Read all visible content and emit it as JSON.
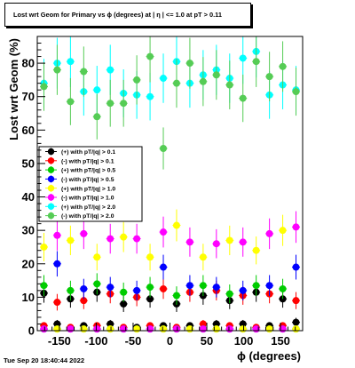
{
  "title": "Lost wrt Geom for Primary vs ϕ (degrees) at | η | <= 1.0 at pT > 0.11",
  "footer_timestamp": "Tue Sep 20 18:40:44 2022",
  "chart_data": {
    "type": "scatter",
    "xlabel": "ϕ (degrees)",
    "ylabel": "Lost wrt Geom (%)",
    "xlim": [
      -180,
      180
    ],
    "ylim": [
      0,
      88
    ],
    "xticks": [
      -150,
      -100,
      -50,
      0,
      50,
      100,
      150
    ],
    "yticks": [
      0,
      10,
      20,
      30,
      40,
      50,
      60,
      70,
      80
    ],
    "grid": false,
    "legend_position": "left-middle",
    "x": [
      -171,
      -153,
      -135,
      -117,
      -99,
      -81,
      -63,
      -45,
      -27,
      -9,
      9,
      27,
      45,
      63,
      81,
      99,
      117,
      135,
      153,
      171
    ],
    "series": [
      {
        "name": "(+) with pT/|q| > 0.1",
        "color": "#000000",
        "marker": "circle",
        "values": [
          11.2,
          2.0,
          9.5,
          1.5,
          11.5,
          2.0,
          8.0,
          1.0,
          9.5,
          1.5,
          8.0,
          1.5,
          10.5,
          2.0,
          9.0,
          2.0,
          11.5,
          1.5,
          9.5,
          2.5
        ]
      },
      {
        "name": "(-) with pT/|q| > 0.1",
        "color": "#ff0000",
        "marker": "circle",
        "values": [
          1.5,
          8.5,
          1.0,
          9.0,
          1.5,
          11.0,
          1.0,
          10.0,
          1.5,
          12.5,
          1.0,
          11.5,
          2.0,
          12.0,
          1.5,
          10.5,
          1.0,
          11.0,
          1.5,
          9.0
        ]
      },
      {
        "name": "(+) with pT/|q| > 0.5",
        "color": "#00cc00",
        "marker": "circle",
        "values": [
          13.5,
          0.5,
          12.0,
          0.5,
          14.0,
          0.5,
          11.5,
          0.5,
          13.0,
          0.5,
          10.5,
          0.5,
          13.5,
          0.5,
          11.0,
          0.5,
          13.5,
          0.5,
          12.5,
          0.5
        ]
      },
      {
        "name": "(-) with pT/|q| > 0.5",
        "color": "#0000ff",
        "marker": "circle",
        "values": [
          0.5,
          20.0,
          0.5,
          12.5,
          0.5,
          13.0,
          0.5,
          12.0,
          0.5,
          19.0,
          0.5,
          13.5,
          0.5,
          13.0,
          0.5,
          12.0,
          0.5,
          13.5,
          0.5,
          19.0
        ]
      },
      {
        "name": "(+) with pT/|q| > 1.0",
        "color": "#ffff00",
        "marker": "circle",
        "values": [
          25.0,
          0.5,
          27.0,
          0.5,
          22.0,
          0.5,
          28.0,
          0.5,
          22.0,
          0.5,
          31.5,
          0.5,
          22.0,
          0.5,
          27.0,
          0.5,
          24.0,
          0.5,
          30.0,
          0.5
        ]
      },
      {
        "name": "(-) with pT/|q| > 1.0",
        "color": "#ff00ff",
        "marker": "circle",
        "values": [
          0.5,
          28.5,
          0.5,
          29.0,
          0.5,
          27.5,
          0.5,
          27.5,
          0.5,
          29.5,
          0.5,
          26.5,
          0.5,
          26.0,
          0.5,
          26.5,
          0.5,
          29.0,
          0.5,
          31.0
        ]
      },
      {
        "name": "(+) with pT/|q| > 2.0",
        "color": "#00ffff",
        "marker": "circle",
        "values": [
          74.0,
          80.0,
          80.5,
          71.5,
          72.0,
          78.0,
          71.0,
          70.5,
          70.0,
          75.5,
          80.5,
          74.0,
          76.5,
          78.0,
          75.5,
          81.5,
          83.5,
          70.5,
          73.5,
          72.0
        ]
      },
      {
        "name": "(-) with pT/|q| > 2.0",
        "color": "#55cc55",
        "marker": "circle",
        "values": [
          73.0,
          78.0,
          68.5,
          77.5,
          64.0,
          68.0,
          68.0,
          75.0,
          82.0,
          54.5,
          74.0,
          80.0,
          74.5,
          76.5,
          73.5,
          69.5,
          80.5,
          76.0,
          79.0,
          71.5
        ]
      }
    ]
  }
}
